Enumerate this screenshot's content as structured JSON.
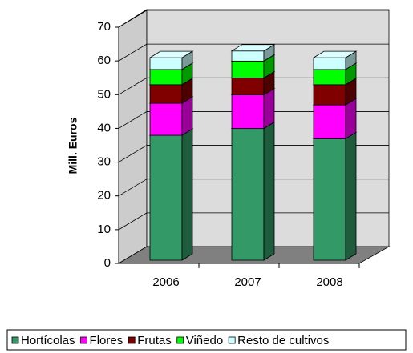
{
  "chart_data": {
    "type": "bar3d_stacked",
    "y_axis_label": "Mill. Euros",
    "categories": [
      "2006",
      "2007",
      "2008"
    ],
    "series": [
      {
        "name": "Hortícolas",
        "color": "#339966",
        "values": [
          37,
          39,
          36
        ]
      },
      {
        "name": "Flores",
        "color": "#ff00ff",
        "values": [
          9.5,
          10,
          10
        ]
      },
      {
        "name": "Frutas",
        "color": "#800000",
        "values": [
          5.5,
          5,
          6
        ]
      },
      {
        "name": "Viñedo",
        "color": "#00ff00",
        "values": [
          4.5,
          5,
          4.5
        ]
      },
      {
        "name": "Resto de cultivos",
        "color": "#ccffff",
        "values": [
          3.5,
          3,
          3.5
        ]
      }
    ],
    "ylim": [
      0,
      70
    ],
    "yticks": [
      0,
      10,
      20,
      30,
      40,
      50,
      60,
      70
    ],
    "grid": true,
    "legend": "bottom"
  }
}
